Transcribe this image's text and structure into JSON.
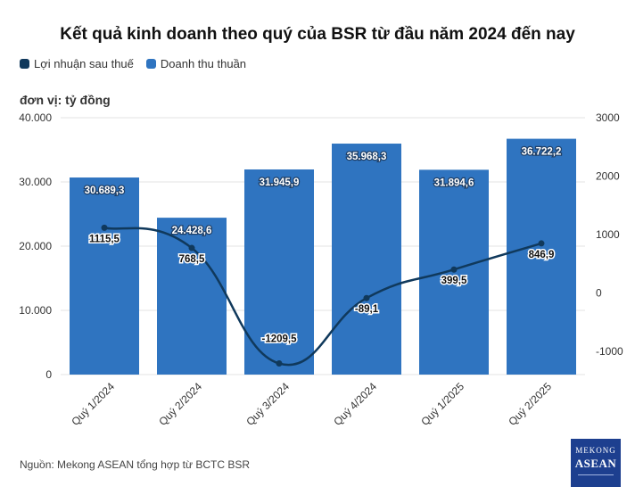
{
  "title": "Kết quả kinh doanh theo quý của BSR từ đầu năm 2024 đến nay",
  "legend": [
    {
      "label": "Lợi nhuận sau thuế",
      "color": "#10395c"
    },
    {
      "label": "Doanh thu thuần",
      "color": "#2f74c0"
    }
  ],
  "unit_label": "đơn vị: tỷ đồng",
  "source": "Nguồn: Mekong ASEAN tổng hợp từ BCTC BSR",
  "logo": {
    "line1": "MEKONG",
    "line2": "ASEAN"
  },
  "chart_data": {
    "type": "bar",
    "categories": [
      "Quý 1/2024",
      "Quý 2/2024",
      "Quý 3/2024",
      "Quý 4/2024",
      "Quý 1/2025",
      "Quý 2/2025"
    ],
    "series": [
      {
        "name": "Doanh thu thuần",
        "type": "bar",
        "axis": "left",
        "color": "#2f74c0",
        "values": [
          30689.3,
          24428.6,
          31945.9,
          35968.3,
          31894.6,
          36722.2
        ],
        "labels": [
          "30.689,3",
          "24.428,6",
          "31.945,9",
          "35.968,3",
          "31.894,6",
          "36.722,2"
        ]
      },
      {
        "name": "Lợi nhuận sau thuế",
        "type": "line",
        "axis": "right",
        "color": "#10395c",
        "values": [
          1115.5,
          768.5,
          -1209.5,
          -89.1,
          399.5,
          846.9
        ],
        "labels": [
          "1115,5",
          "768,5",
          "-1209,5",
          "-89,1",
          "399,5",
          "846,9"
        ]
      }
    ],
    "y_left": {
      "min": 0,
      "max": 40000,
      "ticks": [
        0,
        10000,
        20000,
        30000,
        40000
      ],
      "tick_labels": [
        "0",
        "10.000",
        "20.000",
        "30.000",
        "40.000"
      ]
    },
    "y_right": {
      "min": -1400,
      "max": 3000,
      "ticks": [
        -1000,
        0,
        1000,
        2000,
        3000
      ],
      "tick_labels": [
        "-1000",
        "0",
        "1000",
        "2000",
        "3000"
      ]
    },
    "grid": true,
    "legend_position": "top-left"
  }
}
